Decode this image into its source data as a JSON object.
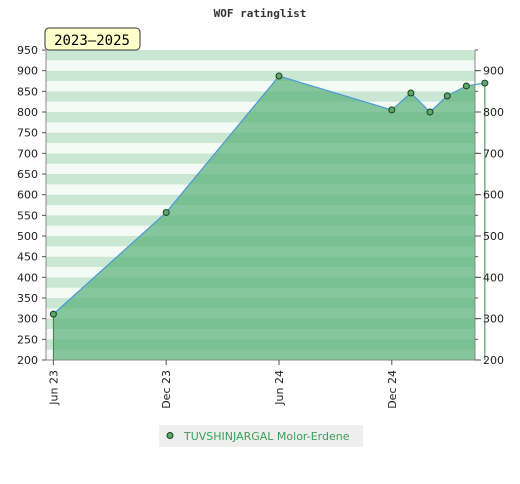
{
  "chart_data": {
    "type": "area",
    "title": "WOF ratinglist",
    "period_badge": "2023–2025",
    "x_tick_labels": [
      "Jun 23",
      "Dec 23",
      "Jun 24",
      "Dec 24"
    ],
    "x_ticks": [
      "2023-06-01",
      "2023-12-01",
      "2024-06-01",
      "2024-12-01"
    ],
    "x_range": [
      "2023-05-20",
      "2025-04-15"
    ],
    "ylim": [
      200,
      950
    ],
    "y_ticks_left": [
      200,
      250,
      300,
      350,
      400,
      450,
      500,
      550,
      600,
      650,
      700,
      750,
      800,
      850,
      900,
      950
    ],
    "y_ticks_right": [
      200,
      300,
      400,
      500,
      600,
      700,
      800,
      900
    ],
    "series": [
      {
        "name": "TUVSHINJARGAL Molor-Erdene",
        "x": [
          "2023-06-01",
          "2023-12-01",
          "2024-06-01",
          "2024-12-01",
          "2025-01-01",
          "2025-02-01",
          "2025-03-01",
          "2025-04-01",
          "2025-05-01"
        ],
        "values": [
          311,
          557,
          887,
          805,
          846,
          800,
          839,
          863,
          870
        ]
      }
    ],
    "legend_placement": "bottom-center",
    "grid": "horizontal bands",
    "colors": {
      "area_fill": "#5ab27a",
      "line": "#4a9ad4",
      "marker_fill": "#5aa86a",
      "marker_stroke": "#1f3d1f",
      "legend_text": "#3aa05a",
      "legend_bg": "#eeeeee",
      "badge_bg": "#ffffcc"
    }
  }
}
